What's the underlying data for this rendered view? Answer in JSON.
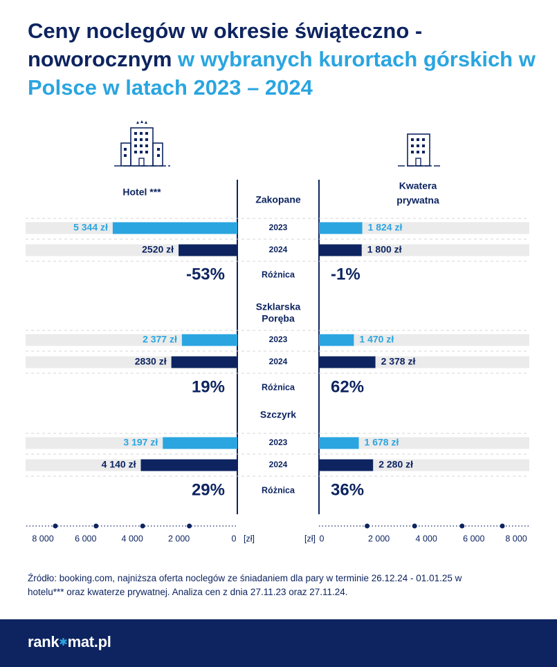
{
  "title": {
    "part1": "Ceny noclegów w okresie świąteczno -noworocznym",
    "part2": "w wybranych kurortach górskich w Polsce w latach 2023 – 2024"
  },
  "colors": {
    "navy": "#0d2460",
    "light_blue": "#2aa5e0",
    "track": "#ebebeb",
    "white": "#ffffff"
  },
  "icons": {
    "hotel": "hotel-building-icon",
    "apartment": "apartment-building-icon",
    "logo_star": "star-icon"
  },
  "chart_data": {
    "type": "bar",
    "layout": "butterfly",
    "title": "Ceny noclegów w okresie świąteczno -noworocznym w wybranych kurortach górskich w Polsce w latach 2023 – 2024",
    "left_header": "Hotel ***",
    "right_header": "Kwatera prywatna",
    "year_labels": [
      "2023",
      "2024"
    ],
    "diff_label": "Różnica",
    "groups": [
      {
        "name": "Zakopane",
        "hotel": {
          "v2023": 5344,
          "v2024": 2520,
          "l2023": "5 344 zł",
          "l2024": "2520 zł",
          "diff": "-53%"
        },
        "kwatera": {
          "v2023": 1824,
          "v2024": 1800,
          "l2023": "1 824 zł",
          "l2024": "1 800 zł",
          "diff": "-1%"
        }
      },
      {
        "name": "Szklarska Poręba",
        "hotel": {
          "v2023": 2377,
          "v2024": 2830,
          "l2023": "2 377 zł",
          "l2024": "2830 zł",
          "diff": "19%"
        },
        "kwatera": {
          "v2023": 1470,
          "v2024": 2378,
          "l2023": "1 470 zł",
          "l2024": "2 378 zł",
          "diff": "62%"
        }
      },
      {
        "name": "Szczyrk",
        "hotel": {
          "v2023": 3197,
          "v2024": 4140,
          "l2023": "3 197 zł",
          "l2024": "4 140 zł",
          "diff": "29%"
        },
        "kwatera": {
          "v2023": 1678,
          "v2024": 2280,
          "l2023": "1 678 zł",
          "l2024": "2 280 zł",
          "diff": "36%"
        }
      }
    ],
    "axis": {
      "max": 8000,
      "ticks": [
        0,
        2000,
        4000,
        6000,
        8000
      ],
      "tick_labels": [
        "0",
        "2 000",
        "4 000",
        "6 000",
        "8 000"
      ],
      "unit_left": "[zł]",
      "unit_right": "[zł]"
    }
  },
  "source": "Źródło: booking.com, najniższa oferta noclegów ze śniadaniem dla pary w terminie 26.12.24 - 01.01.25 w hotelu*** oraz kwaterze prywatnej. Analiza cen z dnia 27.11.23 oraz 27.11.24.",
  "footer": {
    "logo_part1": "rank",
    "logo_part2": "mat.pl"
  }
}
